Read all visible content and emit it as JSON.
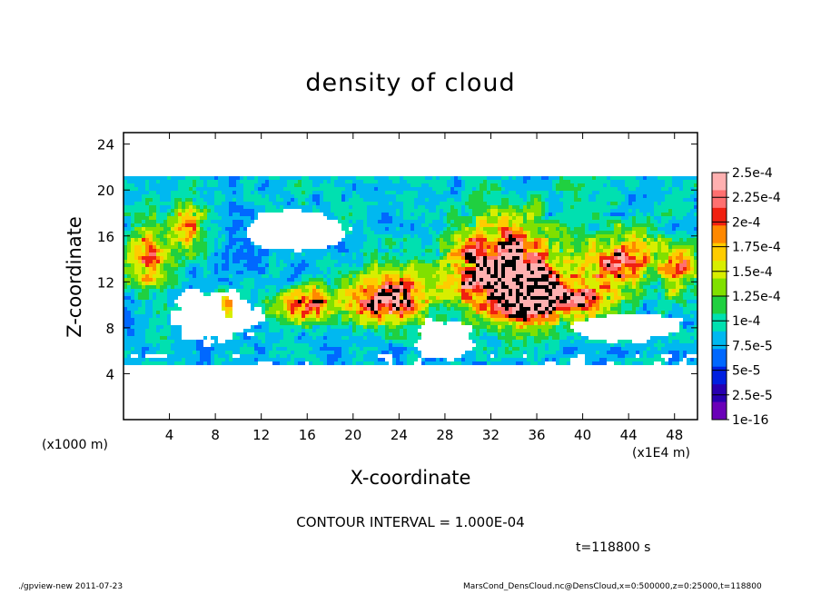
{
  "chart_data": {
    "type": "heatmap",
    "title": "density of cloud",
    "xlabel": "X-coordinate",
    "ylabel": "Z-coordinate",
    "x_unit_left": "(x1000 m)",
    "x_unit_right": "(x1E4 m)",
    "xlim": [
      0,
      50
    ],
    "ylim": [
      0,
      25
    ],
    "x_ticks": [
      4,
      8,
      12,
      16,
      20,
      24,
      28,
      32,
      36,
      40,
      44,
      48
    ],
    "y_ticks": [
      4,
      8,
      12,
      16,
      20,
      24
    ],
    "colorbar": {
      "labels": [
        "2.5e-4",
        "2.25e-4",
        "2e-4",
        "1.75e-4",
        "1.5e-4",
        "1.25e-4",
        "1e-4",
        "7.5e-5",
        "5e-5",
        "2.5e-5",
        "1e-16"
      ],
      "colors": [
        "#ffb0b0",
        "#ff7070",
        "#f02010",
        "#ff8800",
        "#ffcc00",
        "#d8ee00",
        "#80e000",
        "#20d040",
        "#00e0b0",
        "#00b8f0",
        "#0068ff",
        "#0020e0",
        "#2800b0",
        "#6a00b8"
      ]
    },
    "clusters": [
      {
        "x": 2,
        "z": 14,
        "rx": 2.2,
        "rz": 3.2,
        "level": 0.55
      },
      {
        "x": 5.5,
        "z": 17,
        "rx": 1.5,
        "rz": 2.5,
        "level": 0.48
      },
      {
        "x": 9,
        "z": 10,
        "rx": 1.0,
        "rz": 1.8,
        "level": 0.4
      },
      {
        "x": 16,
        "z": 10,
        "rx": 3.0,
        "rz": 1.8,
        "level": 0.62
      },
      {
        "x": 23,
        "z": 10.5,
        "rx": 3.8,
        "rz": 2.6,
        "level": 0.8
      },
      {
        "x": 33,
        "z": 13,
        "rx": 5.0,
        "rz": 4.5,
        "level": 0.95
      },
      {
        "x": 35.5,
        "z": 11,
        "rx": 2.5,
        "rz": 2.5,
        "level": 1.0
      },
      {
        "x": 40,
        "z": 10.5,
        "rx": 3.0,
        "rz": 2.5,
        "level": 0.55
      },
      {
        "x": 43.5,
        "z": 14,
        "rx": 3.5,
        "rz": 2.8,
        "level": 0.6
      },
      {
        "x": 48.5,
        "z": 13,
        "rx": 1.8,
        "rz": 2.5,
        "level": 0.45
      }
    ],
    "grid": false
  },
  "annotations": {
    "contour_interval": "CONTOUR INTERVAL = 1.000E-04",
    "time": "t=118800 s",
    "footer_left": "./gpview-new  2011-07-23",
    "footer_right": "MarsCond_DensCloud.nc@DensCloud,x=0:500000,z=0:25000,t=118800"
  }
}
